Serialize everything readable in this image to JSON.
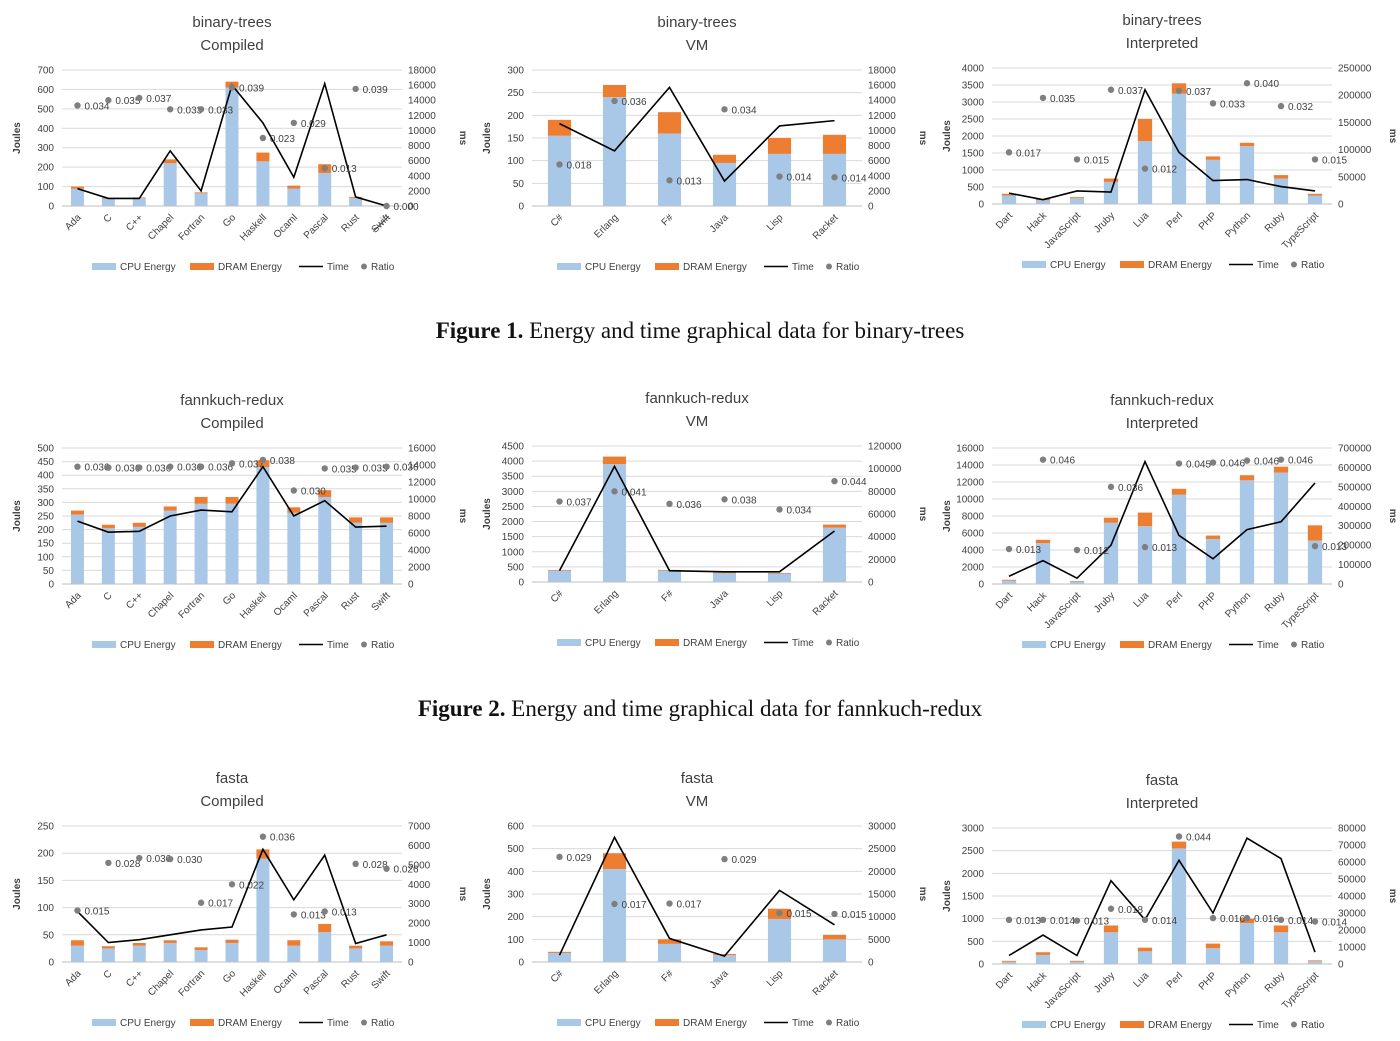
{
  "captions": [
    {
      "label": "Figure 1.",
      "text": "Energy and time graphical data for binary-trees"
    },
    {
      "label": "Figure 2.",
      "text": "Energy and time graphical data for fannkuch-redux"
    }
  ],
  "legend": {
    "cpu": "CPU Energy",
    "dram": "DRAM Energy",
    "time": "Time",
    "ratio": "Ratio"
  },
  "colors": {
    "cpu": "#a9c8e8",
    "dram": "#ed7d31",
    "time": "#000000",
    "ratio": "#7f7f7f",
    "grid": "#d9d9d9"
  },
  "chart_data": [
    {
      "type": "bar",
      "title": [
        "binary-trees",
        "Compiled"
      ],
      "ylabel": "Joules",
      "y2label": "ms",
      "ylim": [
        0,
        700
      ],
      "ystep": 100,
      "y2lim": [
        0,
        18000
      ],
      "y2step": 2000,
      "categories": [
        "Ada",
        "C",
        "C++",
        "Chapel",
        "Fortran",
        "Go",
        "Haskell",
        "Ocaml",
        "Pascal",
        "Rust",
        "Swift"
      ],
      "cpu": [
        90,
        38,
        40,
        220,
        65,
        610,
        230,
        90,
        170,
        42,
        0
      ],
      "dram": [
        10,
        4,
        4,
        20,
        5,
        30,
        45,
        15,
        45,
        5,
        0
      ],
      "time": [
        2300,
        1000,
        1000,
        7300,
        2000,
        16000,
        11000,
        3800,
        16200,
        1200,
        0
      ],
      "ratio": [
        0.034,
        0.035,
        0.037,
        0.033,
        0.033,
        0.039,
        0.023,
        0.029,
        0.013,
        0.039,
        0.0
      ],
      "ratio_labels": [
        "0.034",
        "0.035",
        "0.037",
        "0.033",
        "0.033",
        "0.039",
        "0.023",
        "0.029",
        "0.013",
        "0.039",
        "0.000"
      ],
      "ratio_y": [
        13300,
        14000,
        14300,
        12800,
        12800,
        15700,
        9000,
        11000,
        5000,
        15500,
        0
      ],
      "struck": [
        10
      ]
    },
    {
      "type": "bar",
      "title": [
        "binary-trees",
        "VM"
      ],
      "ylabel": "Joules",
      "y2label": "ms",
      "ylim": [
        0,
        300
      ],
      "ystep": 50,
      "y2lim": [
        0,
        18000
      ],
      "y2step": 2000,
      "categories": [
        "C#",
        "Erlang",
        "F#",
        "Java",
        "Lisp",
        "Racket"
      ],
      "cpu": [
        155,
        240,
        160,
        95,
        115,
        115
      ],
      "dram": [
        35,
        27,
        47,
        18,
        35,
        42
      ],
      "time": [
        10900,
        7300,
        15700,
        3300,
        10600,
        11300
      ],
      "ratio": [
        0.018,
        0.036,
        0.013,
        0.034,
        0.014,
        0.014
      ],
      "ratio_labels": [
        "0.018",
        "0.036",
        "0.013",
        "0.034",
        "0.014",
        "0.014"
      ],
      "ratio_y": [
        5500,
        13900,
        3400,
        12800,
        3900,
        3800
      ],
      "struck": []
    },
    {
      "type": "bar",
      "title": [
        "binary-trees",
        "Interpreted"
      ],
      "ylabel": "Joules",
      "y2label": "ms",
      "ylim": [
        0,
        4000
      ],
      "ystep": 500,
      "y2lim": [
        0,
        250000
      ],
      "y2step": 50000,
      "categories": [
        "Dart",
        "Hack",
        "JavaScript",
        "Jruby",
        "Lua",
        "Perl",
        "PHP",
        "Python",
        "Ruby",
        "TypeScript"
      ],
      "cpu": [
        250,
        110,
        170,
        650,
        1850,
        3250,
        1300,
        1700,
        750,
        250
      ],
      "dram": [
        50,
        40,
        30,
        100,
        650,
        300,
        100,
        100,
        100,
        50
      ],
      "time": [
        20000,
        8000,
        24000,
        22000,
        210000,
        95000,
        43000,
        45000,
        32000,
        24000
      ],
      "ratio": [
        0.017,
        0.035,
        0.015,
        0.037,
        0.012,
        0.037,
        0.033,
        0.04,
        0.032,
        0.015
      ],
      "ratio_labels": [
        "0.017",
        "0.035",
        "0.015",
        "0.037",
        "0.012",
        "0.037",
        "0.033",
        "0.040",
        "0.032",
        "0.015"
      ],
      "ratio_y": [
        95000,
        195000,
        82000,
        210000,
        65000,
        208000,
        185000,
        222000,
        180000,
        82000
      ],
      "struck": []
    },
    {
      "type": "bar",
      "title": [
        "fannkuch-redux",
        "Compiled"
      ],
      "ylabel": "Joules",
      "y2label": "ms",
      "ylim": [
        0,
        500
      ],
      "ystep": 50,
      "y2lim": [
        0,
        16000
      ],
      "y2step": 2000,
      "categories": [
        "Ada",
        "C",
        "C++",
        "Chapel",
        "Fortran",
        "Go",
        "Haskell",
        "Ocaml",
        "Pascal",
        "Rust",
        "Swift"
      ],
      "cpu": [
        255,
        205,
        210,
        270,
        295,
        295,
        430,
        262,
        320,
        225,
        225
      ],
      "dram": [
        15,
        13,
        15,
        15,
        25,
        25,
        25,
        20,
        25,
        20,
        20
      ],
      "time": [
        7400,
        6100,
        6200,
        8000,
        8700,
        8500,
        13800,
        8000,
        9800,
        6700,
        6800
      ],
      "ratio": [
        0.036,
        0.036,
        0.036,
        0.036,
        0.036,
        0.037,
        0.038,
        0.03,
        0.035,
        0.035,
        0.036
      ],
      "ratio_labels": [
        "0.036",
        "0.036",
        "0.036",
        "0.036",
        "0.036",
        "0.037",
        "0.038",
        "0.030",
        "0.035",
        "0.035",
        "0.036"
      ],
      "ratio_y": [
        13800,
        13700,
        13700,
        13800,
        13800,
        14200,
        14600,
        11000,
        13600,
        13700,
        13800
      ],
      "struck": []
    },
    {
      "type": "bar",
      "title": [
        "fannkuch-redux",
        "VM"
      ],
      "ylabel": "Joules",
      "y2label": "ms",
      "ylim": [
        0,
        4500
      ],
      "ystep": 500,
      "y2lim": [
        0,
        120000
      ],
      "y2step": 20000,
      "categories": [
        "C#",
        "Erlang",
        "F#",
        "Java",
        "Lisp",
        "Racket"
      ],
      "cpu": [
        380,
        3900,
        380,
        290,
        280,
        1800
      ],
      "dram": [
        20,
        250,
        20,
        20,
        20,
        100
      ],
      "time": [
        10000,
        102000,
        10000,
        9000,
        9000,
        45000
      ],
      "ratio": [
        0.037,
        0.041,
        0.036,
        0.038,
        0.034,
        0.044
      ],
      "ratio_labels": [
        "0.037",
        "0.041",
        "0.036",
        "0.038",
        "0.034",
        "0.044"
      ],
      "ratio_y": [
        71000,
        80000,
        69000,
        73000,
        64000,
        89000
      ],
      "struck": []
    },
    {
      "type": "bar",
      "title": [
        "fannkuch-redux",
        "Interpreted"
      ],
      "ylabel": "Joules",
      "y2label": "ms",
      "ylim": [
        0,
        16000
      ],
      "ystep": 2000,
      "y2lim": [
        0,
        700000
      ],
      "y2step": 100000,
      "categories": [
        "Dart",
        "Hack",
        "JavaScript",
        "Jruby",
        "Lua",
        "Perl",
        "PHP",
        "Python",
        "Ruby",
        "TypeScript"
      ],
      "cpu": [
        400,
        4800,
        300,
        7200,
        6800,
        10500,
        5300,
        12200,
        13100,
        5100
      ],
      "dram": [
        100,
        400,
        60,
        600,
        1600,
        700,
        400,
        600,
        700,
        1800
      ],
      "time": [
        40000,
        120000,
        30000,
        200000,
        630000,
        250000,
        130000,
        280000,
        320000,
        520000
      ],
      "ratio": [
        0.013,
        0.046,
        0.012,
        0.036,
        0.013,
        0.045,
        0.046,
        0.046,
        0.046,
        0.013
      ],
      "ratio_labels": [
        "0.013",
        "0.046",
        "0.012",
        "0.036",
        "0.013",
        "0.045",
        "0.046",
        "0.046",
        "0.046",
        "0.013"
      ],
      "ratio_y": [
        180000,
        640000,
        175000,
        500000,
        190000,
        620000,
        625000,
        635000,
        640000,
        195000
      ],
      "struck": []
    },
    {
      "type": "bar",
      "title": [
        "fasta",
        "Compiled"
      ],
      "ylabel": "Joules",
      "y2label": "ms",
      "ylim": [
        0,
        250
      ],
      "ystep": 50,
      "y2lim": [
        0,
        7000
      ],
      "y2step": 1000,
      "categories": [
        "Ada",
        "C",
        "C++",
        "Chapel",
        "Fortran",
        "Go",
        "Haskell",
        "Ocaml",
        "Pascal",
        "Rust",
        "Swift"
      ],
      "cpu": [
        30,
        25,
        30,
        35,
        22,
        35,
        190,
        30,
        55,
        25,
        30
      ],
      "dram": [
        10,
        4,
        5,
        5,
        5,
        6,
        17,
        10,
        15,
        5,
        8
      ],
      "time": [
        2600,
        1000,
        1150,
        1400,
        1650,
        1800,
        5800,
        3200,
        5500,
        950,
        1400
      ],
      "ratio": [
        0.015,
        0.028,
        0.03,
        0.03,
        0.017,
        0.022,
        0.036,
        0.013,
        0.013,
        0.028,
        0.026
      ],
      "ratio_labels": [
        "0.015",
        "0.028",
        "0.030",
        "0.030",
        "0.017",
        "0.022",
        "0.036",
        "0.013",
        "0.013",
        "0.028",
        "0.026"
      ],
      "ratio_y": [
        2650,
        5100,
        5350,
        5300,
        3050,
        4000,
        6450,
        2450,
        2600,
        5050,
        4800
      ],
      "struck": []
    },
    {
      "type": "bar",
      "title": [
        "fasta",
        "VM"
      ],
      "ylabel": "Joules",
      "y2label": "ms",
      "ylim": [
        0,
        600
      ],
      "ystep": 100,
      "y2lim": [
        0,
        30000
      ],
      "y2step": 5000,
      "categories": [
        "C#",
        "Erlang",
        "F#",
        "Java",
        "Lisp",
        "Racket"
      ],
      "cpu": [
        40,
        410,
        80,
        30,
        190,
        100
      ],
      "dram": [
        5,
        70,
        20,
        5,
        45,
        20
      ],
      "time": [
        1500,
        27500,
        5200,
        1300,
        15800,
        8200
      ],
      "ratio": [
        0.029,
        0.017,
        0.017,
        0.029,
        0.015,
        0.015
      ],
      "ratio_labels": [
        "0.029",
        "0.017",
        "0.017",
        "0.029",
        "0.015",
        "0.015"
      ],
      "ratio_y": [
        23200,
        12800,
        12900,
        22700,
        10800,
        10600
      ],
      "struck": []
    },
    {
      "type": "bar",
      "title": [
        "fasta",
        "Interpreted"
      ],
      "ylabel": "Joules",
      "y2label": "ms",
      "ylim": [
        0,
        3000
      ],
      "ystep": 500,
      "y2lim": [
        0,
        80000
      ],
      "y2step": 10000,
      "categories": [
        "Dart",
        "Hack",
        "JavaScript",
        "Jruby",
        "Lua",
        "Perl",
        "PHP",
        "Python",
        "Ruby",
        "TypeScript"
      ],
      "cpu": [
        50,
        200,
        50,
        700,
        280,
        2550,
        350,
        900,
        700,
        60
      ],
      "dram": [
        20,
        60,
        20,
        150,
        80,
        150,
        100,
        100,
        150,
        20
      ],
      "time": [
        5000,
        17000,
        5000,
        49000,
        26000,
        61000,
        30000,
        74000,
        62000,
        7000
      ],
      "ratio": [
        0.013,
        0.014,
        0.013,
        0.018,
        0.014,
        0.044,
        0.016,
        0.016,
        0.014,
        0.014
      ],
      "ratio_labels": [
        "0.013",
        "0.014",
        "0.013",
        "0.018",
        "0.014",
        "0.044",
        "0.016",
        "0.016",
        "0.014",
        "0.014"
      ],
      "ratio_y": [
        26000,
        26000,
        25500,
        32500,
        26000,
        75000,
        27000,
        27000,
        26000,
        25000
      ],
      "struck": []
    }
  ]
}
